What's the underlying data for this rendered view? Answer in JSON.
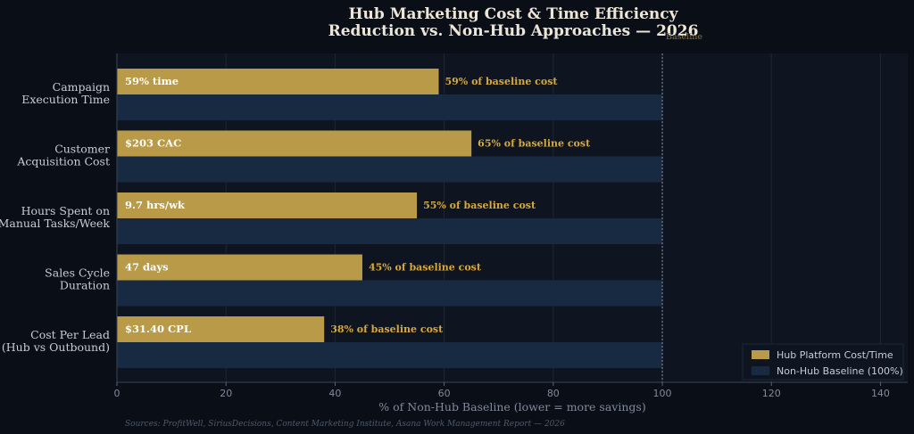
{
  "chart_data": {
    "type": "bar",
    "orientation": "horizontal",
    "title": [
      "Hub Marketing Cost & Time Efficiency",
      "Reduction vs. Non-Hub Approaches — 2026"
    ],
    "xlabel": "% of Non-Hub Baseline (lower = more savings)",
    "ylabel": "",
    "xlim": [
      0,
      145
    ],
    "xticks": [
      0,
      20,
      40,
      60,
      80,
      100,
      120,
      140
    ],
    "grid": "vertical",
    "categories": [
      [
        "Campaign",
        "Execution Time"
      ],
      [
        "Customer",
        "Acquisition Cost"
      ],
      [
        "Hours Spent on",
        "Manual Tasks/Week"
      ],
      [
        "Sales Cycle",
        "Duration"
      ],
      [
        "Cost Per Lead",
        "(Hub vs Outbound)"
      ]
    ],
    "series": [
      {
        "name": "Hub Platform Cost/Time",
        "color": "#b89a48",
        "values": [
          59,
          65,
          55,
          45,
          38
        ],
        "inside_labels": [
          "59% time",
          "$203 CAC",
          "9.7 hrs/wk",
          "47 days",
          "$31.40 CPL"
        ],
        "outside_labels": [
          "59% of baseline cost",
          "65% of baseline cost",
          "55% of baseline cost",
          "45% of baseline cost",
          "38% of baseline cost"
        ]
      },
      {
        "name": "Non-Hub Baseline (100%)",
        "color": "#182a42",
        "values": [
          100,
          100,
          100,
          100,
          100
        ]
      }
    ],
    "reference_line": {
      "x": 100,
      "label": "Baseline"
    },
    "legend_position": "lower-right",
    "source": "Sources: ProfitWell, SiriusDecisions, Content Marketing Institute, Asana Work Management Report — 2026"
  }
}
